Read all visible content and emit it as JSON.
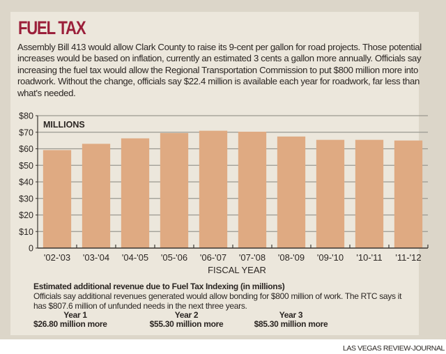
{
  "header": {
    "title": "FUEL TAX",
    "intro": "Assembly Bill 413 would allow Clark County to raise its 9-cent per gallon for road projects. Those potential increases would be based on inflation, currently an estimated 3 cents a gallon more annually. Officials say increasing the fuel tax would allow the Regional Transportation Commission to put $800 million more into roadwork. Without the change, officials say $22.4 million is available each year for roadwork, far less than what's needed."
  },
  "chart_data": {
    "type": "bar",
    "title": "",
    "units_label": "MILLIONS",
    "xlabel": "FISCAL YEAR",
    "ylabel": "",
    "categories": [
      "'02-'03",
      "'03-'04",
      "'04-'05",
      "'05-'06",
      "'06-'07",
      "'07-'08",
      "'08-'09",
      "'09-'10",
      "'10-'11",
      "'11-'12"
    ],
    "values": [
      59.2,
      63.0,
      66.3,
      69.5,
      70.9,
      70.3,
      67.4,
      65.4,
      65.4,
      65.0
    ],
    "ylim": [
      0,
      80
    ],
    "yticks": [
      0,
      10,
      20,
      30,
      40,
      50,
      60,
      70,
      80
    ],
    "ytick_labels": [
      "0",
      "$10",
      "$20",
      "$30",
      "$40",
      "$50",
      "$60",
      "$70",
      "$80"
    ],
    "grid": true,
    "legend": "none",
    "colors": {
      "bar": "#dfaa82",
      "grid": "#9a9890",
      "axis": "#3a3530"
    }
  },
  "estimate": {
    "title": "Estimated additional revenue due to Fuel Tax Indexing (in millions)",
    "body": "Officials say additional revenues generated would allow bonding for $800 million of work. The RTC says it has $807.6 million of unfunded needs in the next three years.",
    "years": [
      {
        "label": "Year 1",
        "value": "$26.80 million more"
      },
      {
        "label": "Year 2",
        "value": "$55.30 million more"
      },
      {
        "label": "Year 3",
        "value": "$85.30 million more"
      }
    ]
  },
  "credit": "LAS VEGAS REVIEW-JOURNAL"
}
